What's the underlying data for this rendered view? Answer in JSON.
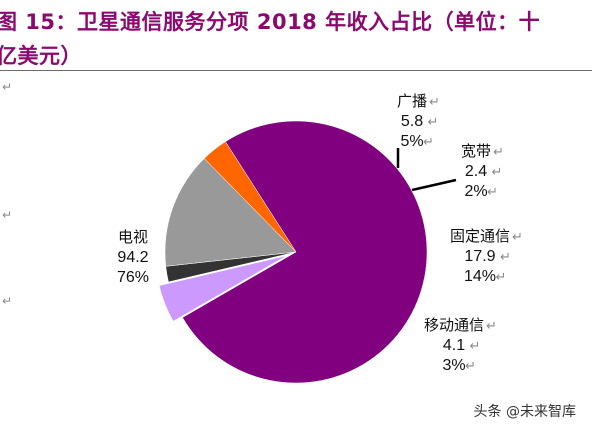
{
  "title": {
    "line1": "图 15：卫星通信服务分项 2018 年收入占比（单位：十",
    "line2": "亿美元）"
  },
  "watermark": "头条 @未来智库",
  "chart_data": {
    "type": "pie",
    "unit": "十亿美元",
    "slices": [
      {
        "name": "电视",
        "value": 94.2,
        "percent": "76%",
        "color": "#800080"
      },
      {
        "name": "广播",
        "value": 5.8,
        "percent": "5%",
        "color": "#cc99ff"
      },
      {
        "name": "宽带",
        "value": 2.4,
        "percent": "2%",
        "color": "#333333"
      },
      {
        "name": "固定通信",
        "value": 17.9,
        "percent": "14%",
        "color": "#999999"
      },
      {
        "name": "移动通信",
        "value": 4.1,
        "percent": "3%",
        "color": "#ff6600"
      }
    ]
  }
}
